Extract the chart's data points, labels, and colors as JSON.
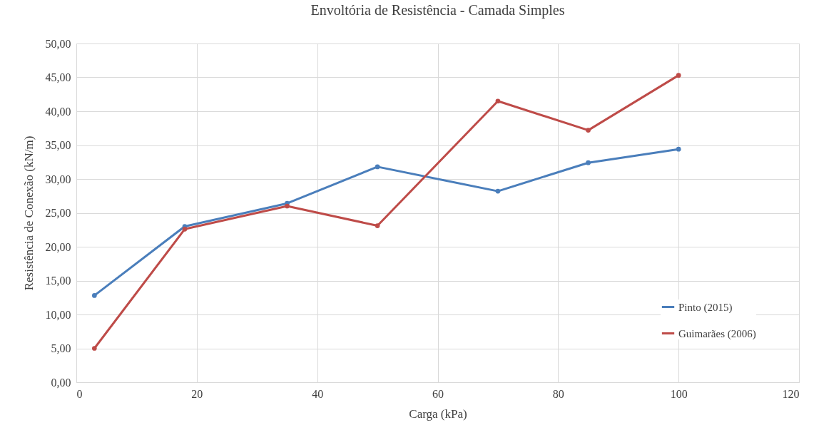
{
  "chart_data": {
    "type": "line",
    "title": "Envoltória de Resistência - Camada Simples",
    "xlabel": "Carga (kPa)",
    "ylabel": "Resistência de Conexão (kN/m)",
    "x": [
      3,
      18,
      35,
      50,
      70,
      85,
      100
    ],
    "series": [
      {
        "name": "Pinto (2015)",
        "color": "#4a7ebb",
        "values": [
          12.8,
          23.0,
          26.4,
          31.8,
          28.2,
          32.4,
          34.4
        ]
      },
      {
        "name": "Guimarães (2006)",
        "color": "#be4b48",
        "values": [
          5.0,
          22.6,
          26.0,
          23.1,
          41.5,
          37.2,
          45.3
        ]
      }
    ],
    "xlim": [
      0,
      120
    ],
    "xticks": [
      0,
      20,
      40,
      60,
      80,
      100,
      120
    ],
    "ylim": [
      0,
      50
    ],
    "yticks": [
      {
        "value": 0,
        "label": "0,00"
      },
      {
        "value": 5,
        "label": "5,00"
      },
      {
        "value": 10,
        "label": "10,00"
      },
      {
        "value": 15,
        "label": "15,00"
      },
      {
        "value": 20,
        "label": "20,00"
      },
      {
        "value": 25,
        "label": "25,00"
      },
      {
        "value": 30,
        "label": "30,00"
      },
      {
        "value": 35,
        "label": "35,00"
      },
      {
        "value": 40,
        "label": "40,00"
      },
      {
        "value": 45,
        "label": "45,00"
      },
      {
        "value": 50,
        "label": "50,00"
      }
    ],
    "grid": true,
    "legend": "bottom right",
    "marker": "circle",
    "line_style": "solid"
  }
}
